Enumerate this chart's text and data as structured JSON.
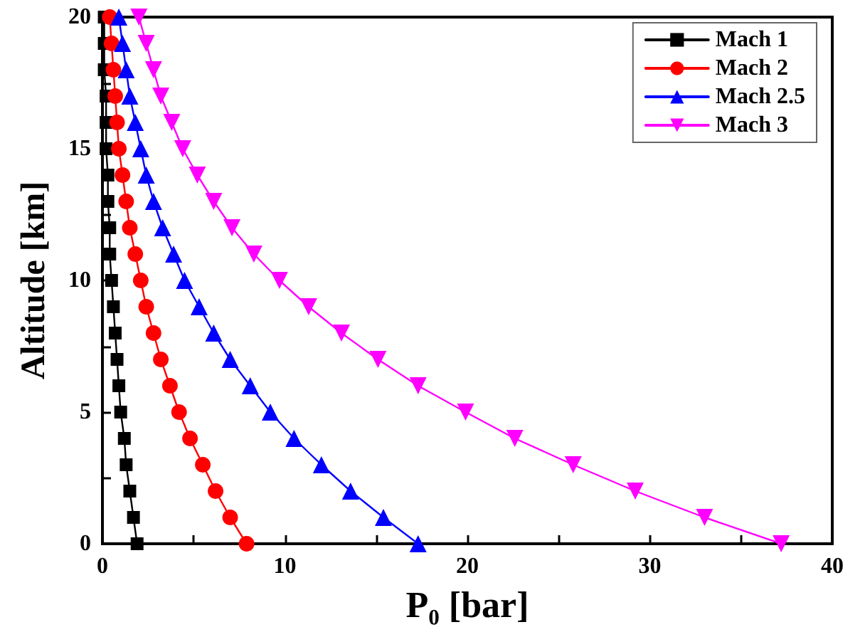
{
  "chart_data": {
    "type": "line",
    "xlabel": "P₀ [bar]",
    "ylabel": "Altitude [km]",
    "xlim": [
      0,
      40
    ],
    "ylim": [
      0,
      20
    ],
    "xticks": [
      0,
      {
        "value": 5,
        "label": null
      },
      10,
      {
        "value": 15,
        "label": null
      },
      20,
      {
        "value": 25,
        "label": null
      },
      30,
      {
        "value": 35,
        "label": null
      },
      40
    ],
    "yticks": [
      0,
      {
        "value": 2.5,
        "label": null
      },
      5,
      {
        "value": 7.5,
        "label": null
      },
      10,
      {
        "value": 12.5,
        "label": null
      },
      15,
      {
        "value": 17.5,
        "label": null
      },
      20
    ],
    "grid": false,
    "legend": "top right",
    "line_style": "solid",
    "series": [
      {
        "name": "Mach 1",
        "color": "#000000",
        "marker": "square",
        "x": [
          1.9,
          1.7,
          1.5,
          1.3,
          1.2,
          1.0,
          0.9,
          0.8,
          0.7,
          0.6,
          0.5,
          0.4,
          0.4,
          0.3,
          0.3,
          0.2,
          0.2,
          0.2,
          0.1,
          0.1,
          0.1
        ],
        "values": [
          0,
          1,
          2,
          3,
          4,
          5,
          6,
          7,
          8,
          9,
          10,
          11,
          12,
          13,
          14,
          15,
          16,
          17,
          18,
          19,
          20
        ]
      },
      {
        "name": "Mach 2",
        "color": "#ff0000",
        "marker": "circle",
        "x": [
          7.9,
          7.0,
          6.2,
          5.5,
          4.8,
          4.2,
          3.7,
          3.2,
          2.8,
          2.4,
          2.1,
          1.8,
          1.5,
          1.3,
          1.1,
          0.9,
          0.8,
          0.7,
          0.6,
          0.5,
          0.4
        ],
        "values": [
          0,
          1,
          2,
          3,
          4,
          5,
          6,
          7,
          8,
          9,
          10,
          11,
          12,
          13,
          14,
          15,
          16,
          17,
          18,
          19,
          20
        ]
      },
      {
        "name": "Mach 2.5",
        "color": "#0000ff",
        "marker": "triangle",
        "x": [
          17.3,
          15.4,
          13.6,
          12.0,
          10.5,
          9.2,
          8.1,
          7.0,
          6.1,
          5.3,
          4.5,
          3.9,
          3.3,
          2.8,
          2.4,
          2.1,
          1.8,
          1.5,
          1.3,
          1.1,
          0.9
        ],
        "values": [
          0,
          1,
          2,
          3,
          4,
          5,
          6,
          7,
          8,
          9,
          10,
          11,
          12,
          13,
          14,
          15,
          16,
          17,
          18,
          19,
          20
        ]
      },
      {
        "name": "Mach 3",
        "color": "#ff00ff",
        "marker": "triangle_down",
        "x": [
          37.2,
          33.0,
          29.2,
          25.8,
          22.6,
          19.9,
          17.3,
          15.1,
          13.1,
          11.3,
          9.7,
          8.3,
          7.1,
          6.1,
          5.2,
          4.4,
          3.8,
          3.2,
          2.8,
          2.4,
          2.0
        ],
        "values": [
          0,
          1,
          2,
          3,
          4,
          5,
          6,
          7,
          8,
          9,
          10,
          11,
          12,
          13,
          14,
          15,
          16,
          17,
          18,
          19,
          20
        ]
      }
    ]
  }
}
